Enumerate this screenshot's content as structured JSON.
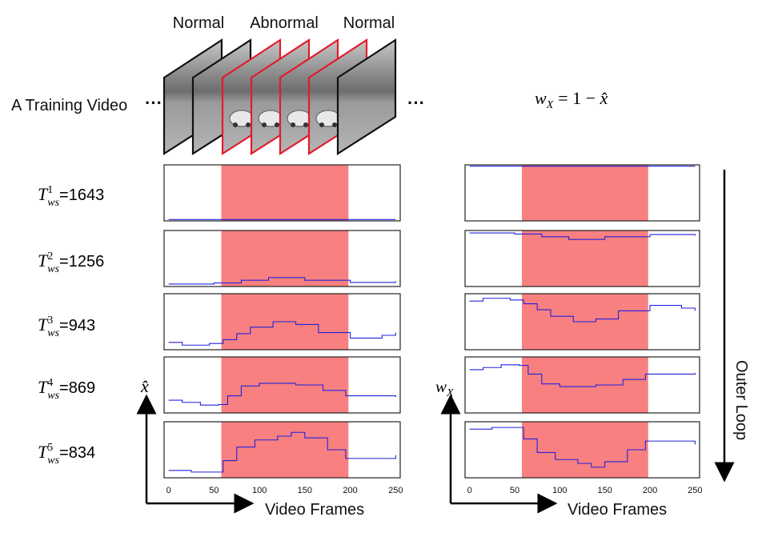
{
  "header": {
    "labels": [
      "Normal",
      "Abnormal",
      "Normal"
    ],
    "training_video": "A Training Video",
    "ellipsis": "···"
  },
  "formula": {
    "lhs_var": "w",
    "lhs_sub": "X",
    "rhs": "= 1 − ",
    "rhs_var": "x̂"
  },
  "rows": [
    {
      "sup": "1",
      "value": "=1643"
    },
    {
      "sup": "2",
      "value": "=1256"
    },
    {
      "sup": "3",
      "value": "=943"
    },
    {
      "sup": "4",
      "value": "=869"
    },
    {
      "sup": "5",
      "value": "=834"
    }
  ],
  "row_symbol": {
    "var": "T",
    "sub": "ws"
  },
  "left_axis": {
    "ylabel": "x̂",
    "xlabel": "Video Frames"
  },
  "right_axis": {
    "ylabel_var": "w",
    "ylabel_sub": "X",
    "xlabel": "Video Frames"
  },
  "outer_loop_label": "Outer Loop",
  "chart_data": {
    "type": "line",
    "x_ticks": [
      "0",
      "50",
      "100",
      "150",
      "200",
      "250"
    ],
    "xlim": [
      -5,
      255
    ],
    "abnormal_range": [
      58,
      198
    ],
    "ylim": [
      0,
      1
    ],
    "left_series": [
      [
        [
          0,
          0.01
        ],
        [
          250,
          0.01
        ]
      ],
      [
        [
          0,
          0.03
        ],
        [
          50,
          0.05
        ],
        [
          80,
          0.1
        ],
        [
          110,
          0.15
        ],
        [
          150,
          0.1
        ],
        [
          200,
          0.06
        ],
        [
          250,
          0.08
        ]
      ],
      [
        [
          0,
          0.12
        ],
        [
          15,
          0.07
        ],
        [
          45,
          0.1
        ],
        [
          60,
          0.17
        ],
        [
          75,
          0.28
        ],
        [
          90,
          0.4
        ],
        [
          115,
          0.5
        ],
        [
          140,
          0.45
        ],
        [
          165,
          0.3
        ],
        [
          200,
          0.2
        ],
        [
          235,
          0.25
        ],
        [
          250,
          0.3
        ]
      ],
      [
        [
          0,
          0.22
        ],
        [
          15,
          0.18
        ],
        [
          35,
          0.13
        ],
        [
          55,
          0.14
        ],
        [
          65,
          0.3
        ],
        [
          80,
          0.48
        ],
        [
          100,
          0.53
        ],
        [
          140,
          0.5
        ],
        [
          170,
          0.4
        ],
        [
          195,
          0.3
        ],
        [
          250,
          0.28
        ]
      ],
      [
        [
          0,
          0.12
        ],
        [
          25,
          0.09
        ],
        [
          45,
          0.09
        ],
        [
          60,
          0.3
        ],
        [
          75,
          0.55
        ],
        [
          95,
          0.68
        ],
        [
          120,
          0.75
        ],
        [
          135,
          0.82
        ],
        [
          150,
          0.72
        ],
        [
          175,
          0.5
        ],
        [
          195,
          0.34
        ],
        [
          250,
          0.4
        ]
      ]
    ],
    "right_series": [
      [
        [
          0,
          0.99
        ],
        [
          250,
          0.99
        ]
      ],
      [
        [
          0,
          0.97
        ],
        [
          50,
          0.95
        ],
        [
          80,
          0.9
        ],
        [
          110,
          0.85
        ],
        [
          150,
          0.9
        ],
        [
          200,
          0.94
        ],
        [
          250,
          0.92
        ]
      ],
      [
        [
          0,
          0.88
        ],
        [
          15,
          0.93
        ],
        [
          45,
          0.9
        ],
        [
          60,
          0.83
        ],
        [
          75,
          0.72
        ],
        [
          90,
          0.6
        ],
        [
          115,
          0.5
        ],
        [
          140,
          0.55
        ],
        [
          165,
          0.7
        ],
        [
          200,
          0.8
        ],
        [
          235,
          0.75
        ],
        [
          250,
          0.7
        ]
      ],
      [
        [
          0,
          0.78
        ],
        [
          15,
          0.82
        ],
        [
          35,
          0.87
        ],
        [
          55,
          0.86
        ],
        [
          65,
          0.7
        ],
        [
          80,
          0.52
        ],
        [
          100,
          0.47
        ],
        [
          140,
          0.5
        ],
        [
          170,
          0.6
        ],
        [
          195,
          0.7
        ],
        [
          250,
          0.72
        ]
      ],
      [
        [
          0,
          0.88
        ],
        [
          25,
          0.91
        ],
        [
          45,
          0.91
        ],
        [
          60,
          0.7
        ],
        [
          75,
          0.45
        ],
        [
          95,
          0.32
        ],
        [
          120,
          0.25
        ],
        [
          135,
          0.18
        ],
        [
          150,
          0.28
        ],
        [
          175,
          0.5
        ],
        [
          195,
          0.66
        ],
        [
          250,
          0.6
        ]
      ]
    ]
  }
}
